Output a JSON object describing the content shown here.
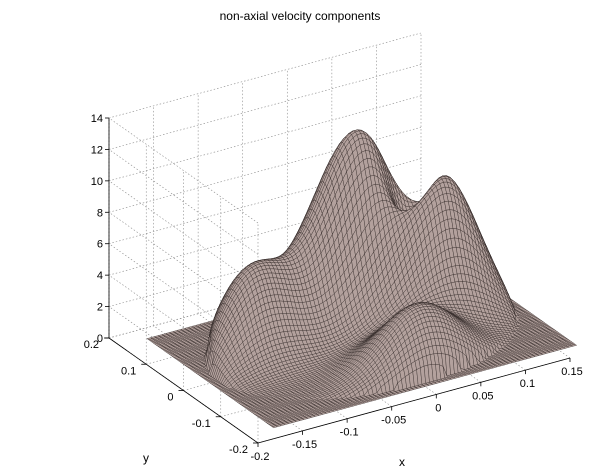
{
  "chart_data": {
    "type": "surface",
    "title": "non-axial velocity components",
    "xlabel": "x",
    "ylabel": "y",
    "zlabel": "",
    "x_ticks": [
      "-0.2",
      "-0.15",
      "-0.1",
      "-0.05",
      "0",
      "0.05",
      "0.1",
      "0.15"
    ],
    "x_tick_values": [
      -0.2,
      -0.15,
      -0.1,
      -0.05,
      0,
      0.05,
      0.1,
      0.15
    ],
    "y_ticks": [
      "0.2",
      "0.1",
      "0",
      "-0.1",
      "-0.2"
    ],
    "y_tick_values": [
      0.2,
      0.1,
      0,
      -0.1,
      -0.2
    ],
    "z_ticks": [
      "0",
      "2",
      "4",
      "6",
      "8",
      "10",
      "12",
      "14"
    ],
    "z_tick_values": [
      0,
      2,
      4,
      6,
      8,
      10,
      12,
      14
    ],
    "xlim": [
      -0.2,
      0.15
    ],
    "ylim": [
      -0.2,
      0.2
    ],
    "zlim": [
      0,
      14
    ],
    "grid": true,
    "mesh_color": "#2b2321",
    "surface_color": "#b3a19d",
    "domain": "circular region of radius about 0.16 centred on the origin, zero outside",
    "peaks": [
      {
        "x": -0.11,
        "y": 0.06,
        "z": 7.0
      },
      {
        "x": 0.02,
        "y": 0.08,
        "z": 12.0
      },
      {
        "x": 0.1,
        "y": 0.02,
        "z": 10.5
      },
      {
        "x": 0.02,
        "y": -0.12,
        "z": 5.0
      }
    ],
    "local_minimum": {
      "x": 0.07,
      "y": 0.04,
      "z": 4.6
    }
  }
}
